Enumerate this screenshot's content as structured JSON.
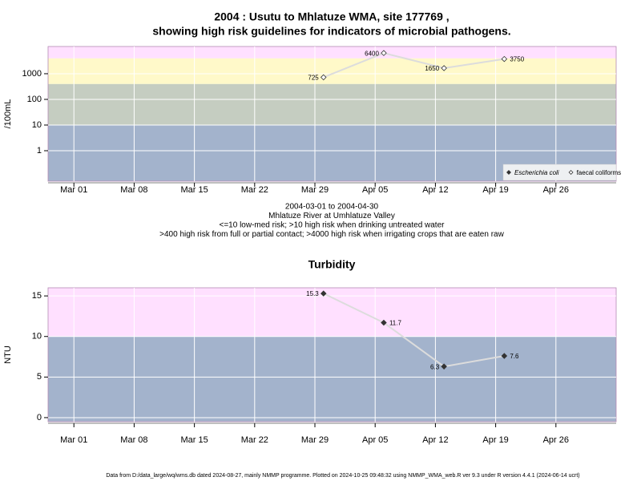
{
  "footer": "Data from D:/data_large/wq/wms.db dated 2024-08-27, mainly NMMP programme. Plotted on 2024-10-25 09:48:32 using NMMP_WMA_web.R ver 9.3 under R version 4.4.1 (2024-06-14 ucrt)",
  "chart_data": [
    {
      "type": "line",
      "title": [
        "2004 : Usutu to Mhlatuze WMA, site 177769 ,",
        "showing high risk guidelines for indicators of microbial pathogens."
      ],
      "notes": [
        "2004-03-01 to 2004-04-30",
        "Mhlatuze River at Umhlatuze Valley",
        "<=10 low-med risk; >10 high risk when drinking untreated water",
        ">400 high risk from full or partial contact; >4000 high risk when irrigating crops that are eaten raw"
      ],
      "ylabel": "/100mL",
      "log_y": true,
      "grid": true,
      "legend": "bottom-right",
      "x": [
        "2004-03-30",
        "2004-04-06",
        "2004-04-13",
        "2004-04-20"
      ],
      "xlim": [
        "2004-02-27",
        "2004-05-03"
      ],
      "xticks": [
        {
          "value": "2004-03-01",
          "label": "Mar 01"
        },
        {
          "value": "2004-03-08",
          "label": "Mar 08"
        },
        {
          "value": "2004-03-15",
          "label": "Mar 15"
        },
        {
          "value": "2004-03-22",
          "label": "Mar 22"
        },
        {
          "value": "2004-03-29",
          "label": "Mar 29"
        },
        {
          "value": "2004-04-05",
          "label": "Apr 05"
        },
        {
          "value": "2004-04-12",
          "label": "Apr 12"
        },
        {
          "value": "2004-04-19",
          "label": "Apr 19"
        },
        {
          "value": "2004-04-26",
          "label": "Apr 26"
        }
      ],
      "ylim": [
        0.065,
        11500
      ],
      "yticks": [
        1,
        10,
        100,
        1000
      ],
      "bands": [
        {
          "from": null,
          "to": 10,
          "color": "#a3b3cc"
        },
        {
          "from": 10,
          "to": 400,
          "color": "#c5cdc1"
        },
        {
          "from": 400,
          "to": 4000,
          "color": "#fff9c9"
        },
        {
          "from": 4000,
          "to": null,
          "color": "#ffe0ff"
        }
      ],
      "series": [
        {
          "name": "Escherichia coli",
          "color": "#333333",
          "marker": "filled",
          "values": [
            null,
            null,
            null,
            null
          ]
        },
        {
          "name": "faecal coliforms",
          "color": "#333333",
          "marker": "open",
          "values": [
            725,
            6400,
            1650,
            3750
          ]
        }
      ]
    },
    {
      "type": "line",
      "title": [
        "Turbidity"
      ],
      "ylabel": "NTU",
      "grid": true,
      "x": [
        "2004-03-30",
        "2004-04-06",
        "2004-04-13",
        "2004-04-20"
      ],
      "xlim": [
        "2004-02-27",
        "2004-05-03"
      ],
      "xticks": [
        {
          "value": "2004-03-01",
          "label": "Mar 01"
        },
        {
          "value": "2004-03-08",
          "label": "Mar 08"
        },
        {
          "value": "2004-03-15",
          "label": "Mar 15"
        },
        {
          "value": "2004-03-22",
          "label": "Mar 22"
        },
        {
          "value": "2004-03-29",
          "label": "Mar 29"
        },
        {
          "value": "2004-04-05",
          "label": "Apr 05"
        },
        {
          "value": "2004-04-12",
          "label": "Apr 12"
        },
        {
          "value": "2004-04-19",
          "label": "Apr 19"
        },
        {
          "value": "2004-04-26",
          "label": "Apr 26"
        }
      ],
      "ylim": [
        -0.5,
        16
      ],
      "yticks": [
        0,
        5,
        10,
        15
      ],
      "bands": [
        {
          "from": null,
          "to": 10,
          "color": "#a3b3cc"
        },
        {
          "from": 10,
          "to": null,
          "color": "#ffe0ff"
        }
      ],
      "series": [
        {
          "name": "Turbidity",
          "color": "#333333",
          "marker": "filled",
          "values": [
            15.3,
            11.7,
            6.3,
            7.6
          ]
        }
      ]
    }
  ]
}
